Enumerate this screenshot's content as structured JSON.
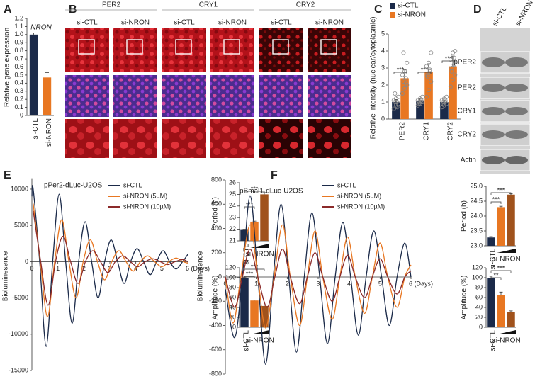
{
  "panel_labels": [
    "A",
    "B",
    "C",
    "D",
    "E",
    "F"
  ],
  "micrographs": {
    "proteins": [
      "PER2",
      "CRY1",
      "CRY2"
    ],
    "conditions": [
      "si-CTL",
      "si-NRON"
    ]
  },
  "western_blot": {
    "conditions": [
      "si-CTL",
      "si-NRON"
    ],
    "bands": [
      "pPER2",
      "PER2",
      "CRY1",
      "CRY2",
      "Actin"
    ]
  },
  "chart_data": [
    {
      "type": "bar",
      "title": "NRON",
      "ylabel": "Relative gene expression",
      "categories": [
        "si-CTL",
        "si-NRON"
      ],
      "values": [
        1.0,
        0.47
      ],
      "errors": [
        0.02,
        0.06
      ],
      "colors": [
        "#1b2a49",
        "#e87722"
      ],
      "ylim": [
        0,
        1.2
      ],
      "yticks": [
        0,
        0.1,
        0.2,
        0.3,
        0.4,
        0.5,
        0.6,
        0.7,
        0.8,
        0.9,
        {
          "value": 1,
          "label": "1.0"
        },
        1.1,
        1.2
      ]
    },
    {
      "type": "grouped_bar",
      "ylabel": "Relative intensity (nuclear/cytoplasmic)",
      "categories": [
        "PER2",
        "CRY1",
        "CRY2"
      ],
      "legend": "upper left",
      "series": [
        {
          "name": "si-CTL",
          "color": "#1b2a49",
          "values": [
            1.0,
            1.05,
            1.0
          ],
          "errors": [
            0.15,
            0.15,
            0.12
          ],
          "points": [
            [
              0.6,
              0.8,
              0.9,
              1.0,
              1.0,
              1.1,
              1.2,
              1.3,
              1.5,
              0.7
            ],
            [
              0.8,
              0.9,
              1.0,
              1.0,
              1.1,
              1.1,
              1.2,
              1.3,
              0.9,
              1.0
            ],
            [
              0.7,
              0.8,
              0.9,
              1.0,
              1.0,
              1.1,
              1.2,
              1.3,
              0.9,
              1.1
            ]
          ]
        },
        {
          "name": "si-NRON",
          "color": "#e87722",
          "values": [
            2.4,
            2.75,
            3.1
          ],
          "errors": [
            0.5,
            0.5,
            0.6
          ],
          "points": [
            [
              1.5,
              1.8,
              2.0,
              2.2,
              2.4,
              2.6,
              2.8,
              3.3,
              3.9,
              2.1
            ],
            [
              1.3,
              1.7,
              2.2,
              2.6,
              2.9,
              3.1,
              3.3,
              3.9,
              2.5,
              2.8
            ],
            [
              1.9,
              2.3,
              2.6,
              3.0,
              3.2,
              3.5,
              3.9,
              4.0,
              2.8,
              3.6
            ]
          ]
        }
      ],
      "ylim": [
        0,
        5
      ],
      "yticks": [
        0,
        1,
        2,
        3,
        4,
        5
      ],
      "annotations": [
        "***",
        "***",
        "***"
      ]
    },
    {
      "type": "line",
      "subtitle": "pPer2-dLuc-U2OS",
      "ylabel": "Bioluminesence",
      "xlim": [
        0,
        6
      ],
      "xticks": [
        0,
        1,
        2,
        3,
        4,
        5,
        {
          "value": 6,
          "label": "6 (Days)"
        }
      ],
      "ylim": [
        -15000,
        11500
      ],
      "yticks": [
        -15000,
        -10000,
        -5000,
        0,
        5000,
        10000
      ],
      "series": [
        {
          "name": "si-CTL",
          "color": "#1b2a49",
          "x": [
            0,
            0.05,
            0.3,
            0.55,
            0.8,
            1.05,
            1.3,
            1.55,
            1.8,
            2.05,
            2.3,
            2.55,
            2.8,
            3.05,
            3.3,
            3.55,
            3.8,
            4.05,
            4.3,
            4.55,
            4.8,
            5.05,
            5.3,
            5.55,
            5.8,
            6.0
          ],
          "values": [
            9000,
            10000,
            0,
            -11700,
            0,
            9300,
            0,
            -8500,
            0,
            5500,
            0,
            -5000,
            0,
            3000,
            0,
            -3000,
            0,
            1800,
            0,
            -1800,
            0,
            1500,
            0,
            -1000,
            0,
            1000
          ]
        },
        {
          "name": "si-NRON (5µM)",
          "color": "#e87722",
          "x": [
            0.05,
            0.325,
            0.6,
            0.875,
            1.15,
            1.425,
            1.7,
            1.975,
            2.25,
            2.525,
            2.8,
            3.075,
            3.35,
            3.625,
            3.9,
            4.175,
            4.45,
            4.725,
            5.0,
            5.275,
            5.55,
            5.825,
            6.0
          ],
          "values": [
            8000,
            0,
            -7600,
            0,
            5800,
            0,
            -5000,
            0,
            3000,
            0,
            -2500,
            0,
            1500,
            0,
            -1300,
            0,
            800,
            0,
            -700,
            0,
            500,
            0,
            -200
          ]
        },
        {
          "name": "si-NRON (10µM)",
          "color": "#8b2a2a",
          "x": [
            0.05,
            0.34,
            0.625,
            0.91,
            1.2,
            1.49,
            1.775,
            2.06,
            2.35,
            2.64,
            2.925,
            3.21,
            3.5,
            3.79,
            4.075,
            4.36,
            4.65,
            4.94,
            5.225,
            5.51,
            5.8,
            6.0
          ],
          "values": [
            7000,
            0,
            -6000,
            0,
            3500,
            0,
            -3000,
            0,
            1500,
            0,
            -1500,
            0,
            800,
            0,
            -700,
            0,
            400,
            0,
            -400,
            0,
            300,
            0
          ]
        }
      ]
    },
    {
      "type": "bar",
      "ylabel": "Period (h)",
      "categories": [
        "si-CTL",
        null,
        null
      ],
      "group_label": "si-NRON",
      "values": [
        22.0,
        22.65,
        25.0
      ],
      "errors": [
        0,
        0.05,
        0.15
      ],
      "colors": [
        "#1b2a49",
        "#e87722",
        "#a0521c"
      ],
      "ylim": [
        21,
        26
      ],
      "yticks": [
        21,
        22,
        23,
        24,
        25,
        26
      ],
      "annotations": [
        "***",
        "***"
      ]
    },
    {
      "type": "bar",
      "ylabel": "Amplitude (%)",
      "categories": [
        "si-CTL",
        null,
        null
      ],
      "group_label": "si-NRON",
      "values": [
        100,
        54,
        43
      ],
      "errors": [
        1,
        1,
        2
      ],
      "colors": [
        "#1b2a49",
        "#e87722",
        "#a0521c"
      ],
      "ylim": [
        0,
        120
      ],
      "yticks": [
        0,
        20,
        40,
        60,
        80,
        100,
        120
      ],
      "annotations": [
        "***",
        "***"
      ]
    },
    {
      "type": "line",
      "subtitle": "pBmal1-dLuc-U2OS",
      "ylabel": "Bioluminesence",
      "xlim": [
        0,
        6
      ],
      "xticks": [
        0,
        1,
        2,
        3,
        4,
        5,
        {
          "value": 6,
          "label": "6 (Days)"
        }
      ],
      "ylim": [
        -800,
        800
      ],
      "yticks": [
        -800,
        -600,
        -400,
        -200,
        0,
        200,
        400,
        600,
        800
      ],
      "series": [
        {
          "name": "si-CTL",
          "color": "#1b2a49",
          "x": [
            0,
            0.3,
            0.55,
            0.8,
            1.05,
            1.3,
            1.55,
            1.8,
            2.05,
            2.3,
            2.55,
            2.8,
            3.05,
            3.3,
            3.55,
            3.8,
            4.05,
            4.3,
            4.55,
            4.8,
            5.05,
            5.3,
            5.55,
            5.8,
            6.0
          ],
          "values": [
            -100,
            -500,
            0,
            670,
            0,
            -720,
            0,
            600,
            0,
            -620,
            0,
            530,
            0,
            -550,
            0,
            450,
            0,
            -480,
            0,
            380,
            0,
            -400,
            0,
            280,
            0
          ]
        },
        {
          "name": "si-NRON (5µM)",
          "color": "#e87722",
          "x": [
            0,
            0.25,
            0.5,
            0.8,
            1.05,
            1.3,
            1.575,
            1.85,
            2.1,
            2.4,
            2.65,
            2.9,
            3.15,
            3.45,
            3.7,
            3.95,
            4.2,
            4.5,
            4.75,
            5.0,
            5.25,
            5.55,
            5.8,
            6.0
          ],
          "values": [
            0,
            -380,
            0,
            430,
            0,
            -420,
            0,
            430,
            0,
            -400,
            0,
            380,
            0,
            -350,
            0,
            330,
            0,
            -300,
            0,
            280,
            0,
            -250,
            0,
            100
          ]
        },
        {
          "name": "si-NRON (10µM)",
          "color": "#8b2a2a",
          "x": [
            0,
            0.3,
            0.55,
            0.8,
            1.05,
            1.35,
            1.6,
            1.85,
            2.1,
            2.4,
            2.65,
            2.9,
            3.15,
            3.45,
            3.7,
            3.95,
            4.2,
            4.5,
            4.75,
            5.0,
            5.25,
            5.55,
            5.8,
            6.0
          ],
          "values": [
            0,
            -250,
            0,
            230,
            0,
            -250,
            0,
            230,
            0,
            -220,
            0,
            200,
            0,
            -200,
            0,
            180,
            0,
            -170,
            0,
            150,
            0,
            -140,
            0,
            50
          ]
        }
      ]
    },
    {
      "type": "bar",
      "ylabel": "Period (h)",
      "categories": [
        "si-CTL",
        null,
        null
      ],
      "group_label": "si-NRON",
      "values": [
        23.28,
        24.3,
        24.72
      ],
      "errors": [
        0.03,
        0.03,
        0.03
      ],
      "colors": [
        "#1b2a49",
        "#e87722",
        "#a0521c"
      ],
      "ylim": [
        23,
        25
      ],
      "yticks": [
        {
          "value": 23,
          "label": "23.0"
        },
        23.5,
        {
          "value": 24,
          "label": "24.0"
        },
        24.5,
        {
          "value": 25,
          "label": "25.0"
        }
      ],
      "annotations": [
        "***",
        "***"
      ]
    },
    {
      "type": "bar",
      "ylabel": "Amplitude (%)",
      "categories": [
        "si-CTL",
        null,
        null
      ],
      "group_label": "si-NRON",
      "values": [
        100,
        65,
        30
      ],
      "errors": [
        3,
        6,
        3
      ],
      "colors": [
        "#1b2a49",
        "#e87722",
        "#a0521c"
      ],
      "ylim": [
        0,
        120
      ],
      "yticks": [
        0,
        20,
        40,
        60,
        80,
        100,
        120
      ],
      "annotations": [
        "**",
        "***"
      ]
    }
  ]
}
